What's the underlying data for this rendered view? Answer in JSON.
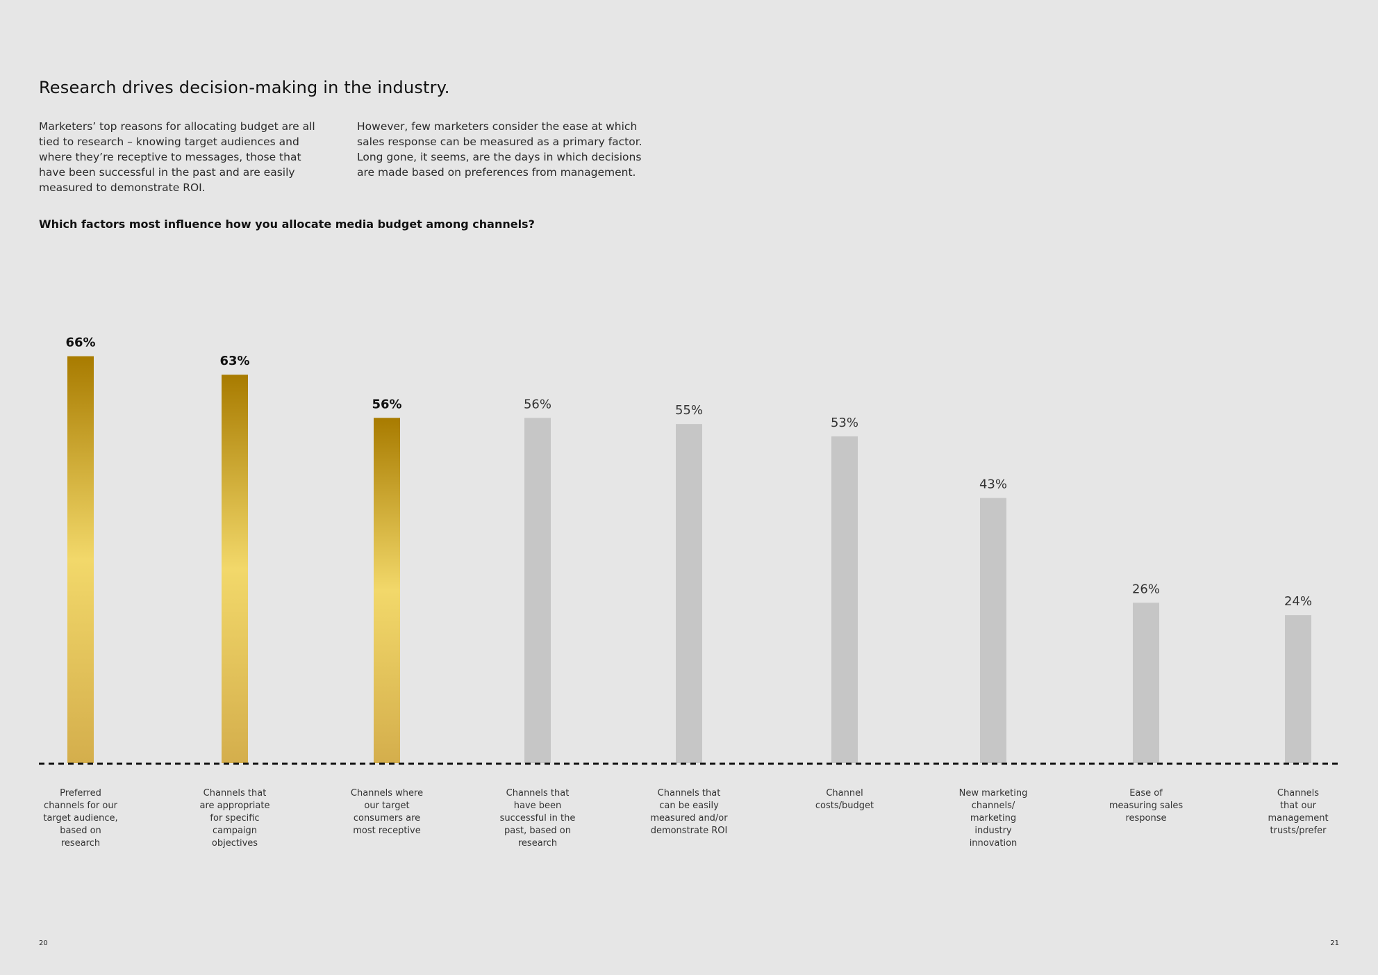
{
  "page": {
    "headline": "Research drives decision-making in the industry.",
    "intro_left": "Marketers’ top reasons for allocating budget are all tied to research – knowing target audiences and where they’re receptive to messages, those that have been successful in the past and are easily measured to demonstrate ROI.",
    "intro_right": "However, few marketers consider the ease at which sales response can be measured as a primary factor. Long gone, it seems, are the days in which decisions are made based on preferences from management.",
    "question": "Which factors most influence how you allocate media budget among channels?",
    "page_left": "20",
    "page_right": "21"
  },
  "chart_data": {
    "type": "bar",
    "title": "Which factors most influence how you allocate media budget among channels?",
    "xlabel": "",
    "ylabel": "",
    "value_suffix": "%",
    "ylim": [
      0,
      70
    ],
    "grid": false,
    "baseline": "dashed",
    "categories": [
      "Preferred\nchannels for our\ntarget audience,\nbased on\nresearch",
      "Channels that\nare appropriate\nfor specific\ncampaign\nobjectives",
      "Channels where\nour target\nconsumers are\nmost receptive",
      "Channels that\nhave been\nsuccessful in the\npast, based on\nresearch",
      "Channels that\ncan be easily\nmeasured and/or\ndemonstrate ROI",
      "Channel\ncosts/budget",
      "New marketing\nchannels/\nmarketing\nindustry\ninnovation",
      "Ease of\nmeasuring sales\nresponse",
      "Channels\nthat our\nmanagement\ntrusts/prefer"
    ],
    "values": [
      66,
      63,
      56,
      56,
      55,
      53,
      43,
      26,
      24
    ],
    "value_labels": [
      "66%",
      "63%",
      "56%",
      "56%",
      "55%",
      "53%",
      "43%",
      "26%",
      "24%"
    ],
    "highlighted": [
      true,
      true,
      true,
      false,
      false,
      false,
      false,
      false,
      false
    ],
    "colors": {
      "highlight_top": "#a87b00",
      "highlight_mid": "#f2d86a",
      "highlight_bottom": "#d4ae4c",
      "normal": "#c6c6c6",
      "baseline": "#111111"
    }
  }
}
